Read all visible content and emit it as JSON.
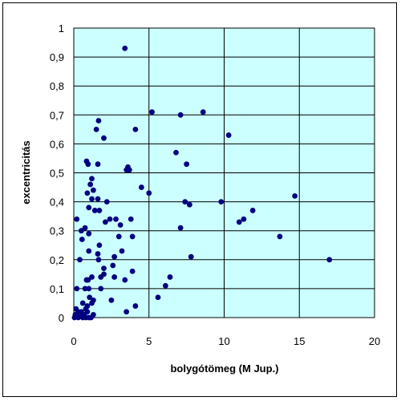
{
  "chart_data": {
    "type": "scatter",
    "title": "",
    "xlabel": "bolygótömeg (M Jup.)",
    "ylabel": "excentricitás",
    "xlim": [
      0,
      20
    ],
    "ylim": [
      0,
      1
    ],
    "xticks": [
      0,
      5,
      10,
      15,
      20
    ],
    "xtick_labels": [
      "0",
      "5",
      "10",
      "15",
      "20"
    ],
    "yticks": [
      0,
      0.1,
      0.2,
      0.3,
      0.4,
      0.5,
      0.6,
      0.7,
      0.8,
      0.9,
      1
    ],
    "ytick_labels": [
      "0",
      "0,1",
      "0,2",
      "0,3",
      "0,4",
      "0,5",
      "0,6",
      "0,7",
      "0,8",
      "0,9",
      "1"
    ],
    "grid": "vertical and horizontal major gridlines",
    "legend": "none",
    "colors": {
      "plot_background": "#ccffff",
      "marker": "#000080",
      "grid": "#000000"
    },
    "points": [
      [
        3.4,
        0.93
      ],
      [
        5.2,
        0.71
      ],
      [
        8.6,
        0.71
      ],
      [
        7.1,
        0.7
      ],
      [
        10.3,
        0.63
      ],
      [
        1.65,
        0.68
      ],
      [
        1.5,
        0.65
      ],
      [
        2.0,
        0.62
      ],
      [
        4.1,
        0.65
      ],
      [
        6.8,
        0.57
      ],
      [
        7.5,
        0.53
      ],
      [
        0.85,
        0.54
      ],
      [
        0.95,
        0.53
      ],
      [
        1.6,
        0.53
      ],
      [
        3.5,
        0.51
      ],
      [
        3.6,
        0.52
      ],
      [
        3.7,
        0.51
      ],
      [
        1.2,
        0.48
      ],
      [
        1.1,
        0.46
      ],
      [
        1.3,
        0.44
      ],
      [
        4.5,
        0.45
      ],
      [
        0.9,
        0.43
      ],
      [
        5.0,
        0.43
      ],
      [
        1.2,
        0.41
      ],
      [
        1.6,
        0.41
      ],
      [
        2.2,
        0.4
      ],
      [
        7.4,
        0.4
      ],
      [
        7.7,
        0.39
      ],
      [
        9.8,
        0.4
      ],
      [
        14.7,
        0.42
      ],
      [
        0.2,
        0.34
      ],
      [
        1.0,
        0.38
      ],
      [
        1.4,
        0.37
      ],
      [
        1.7,
        0.37
      ],
      [
        0.75,
        0.31
      ],
      [
        0.5,
        0.3
      ],
      [
        2.1,
        0.33
      ],
      [
        2.8,
        0.34
      ],
      [
        3.8,
        0.34
      ],
      [
        3.1,
        0.32
      ],
      [
        2.4,
        0.34
      ],
      [
        7.1,
        0.31
      ],
      [
        11.0,
        0.33
      ],
      [
        11.3,
        0.34
      ],
      [
        11.9,
        0.37
      ],
      [
        1.0,
        0.29
      ],
      [
        0.55,
        0.27
      ],
      [
        1.7,
        0.25
      ],
      [
        3.0,
        0.28
      ],
      [
        3.9,
        0.28
      ],
      [
        13.7,
        0.28
      ],
      [
        1.0,
        0.23
      ],
      [
        1.6,
        0.22
      ],
      [
        1.65,
        0.2
      ],
      [
        2.7,
        0.21
      ],
      [
        0.4,
        0.2
      ],
      [
        3.2,
        0.23
      ],
      [
        2.0,
        0.17
      ],
      [
        2.6,
        0.18
      ],
      [
        7.8,
        0.21
      ],
      [
        17.0,
        0.2
      ],
      [
        1.2,
        0.14
      ],
      [
        2.0,
        0.15
      ],
      [
        1.8,
        0.14
      ],
      [
        2.7,
        0.14
      ],
      [
        3.4,
        0.13
      ],
      [
        3.9,
        0.16
      ],
      [
        6.4,
        0.14
      ],
      [
        0.85,
        0.13
      ],
      [
        0.95,
        0.13
      ],
      [
        0.75,
        0.1
      ],
      [
        1.0,
        0.1
      ],
      [
        1.8,
        0.1
      ],
      [
        6.1,
        0.11
      ],
      [
        0.2,
        0.1
      ],
      [
        1.05,
        0.07
      ],
      [
        2.5,
        0.06
      ],
      [
        1.3,
        0.06
      ],
      [
        5.6,
        0.07
      ],
      [
        0.6,
        0.05
      ],
      [
        1.2,
        0.05
      ],
      [
        0.9,
        0.04
      ],
      [
        4.1,
        0.04
      ],
      [
        0.8,
        0.03
      ],
      [
        0.5,
        0.02
      ],
      [
        3.5,
        0.02
      ],
      [
        0.3,
        0.02
      ],
      [
        0.1,
        0.01
      ],
      [
        0.3,
        0.0
      ],
      [
        0.6,
        0.0
      ],
      [
        0.8,
        0.0
      ],
      [
        1.0,
        0.0
      ],
      [
        1.15,
        0.0
      ],
      [
        0.05,
        0.0
      ],
      [
        0.7,
        0.01
      ],
      [
        0.4,
        0.01
      ],
      [
        1.3,
        0.01
      ],
      [
        0.25,
        0.005
      ],
      [
        0.9,
        0.02
      ],
      [
        0.15,
        0.03
      ]
    ]
  }
}
